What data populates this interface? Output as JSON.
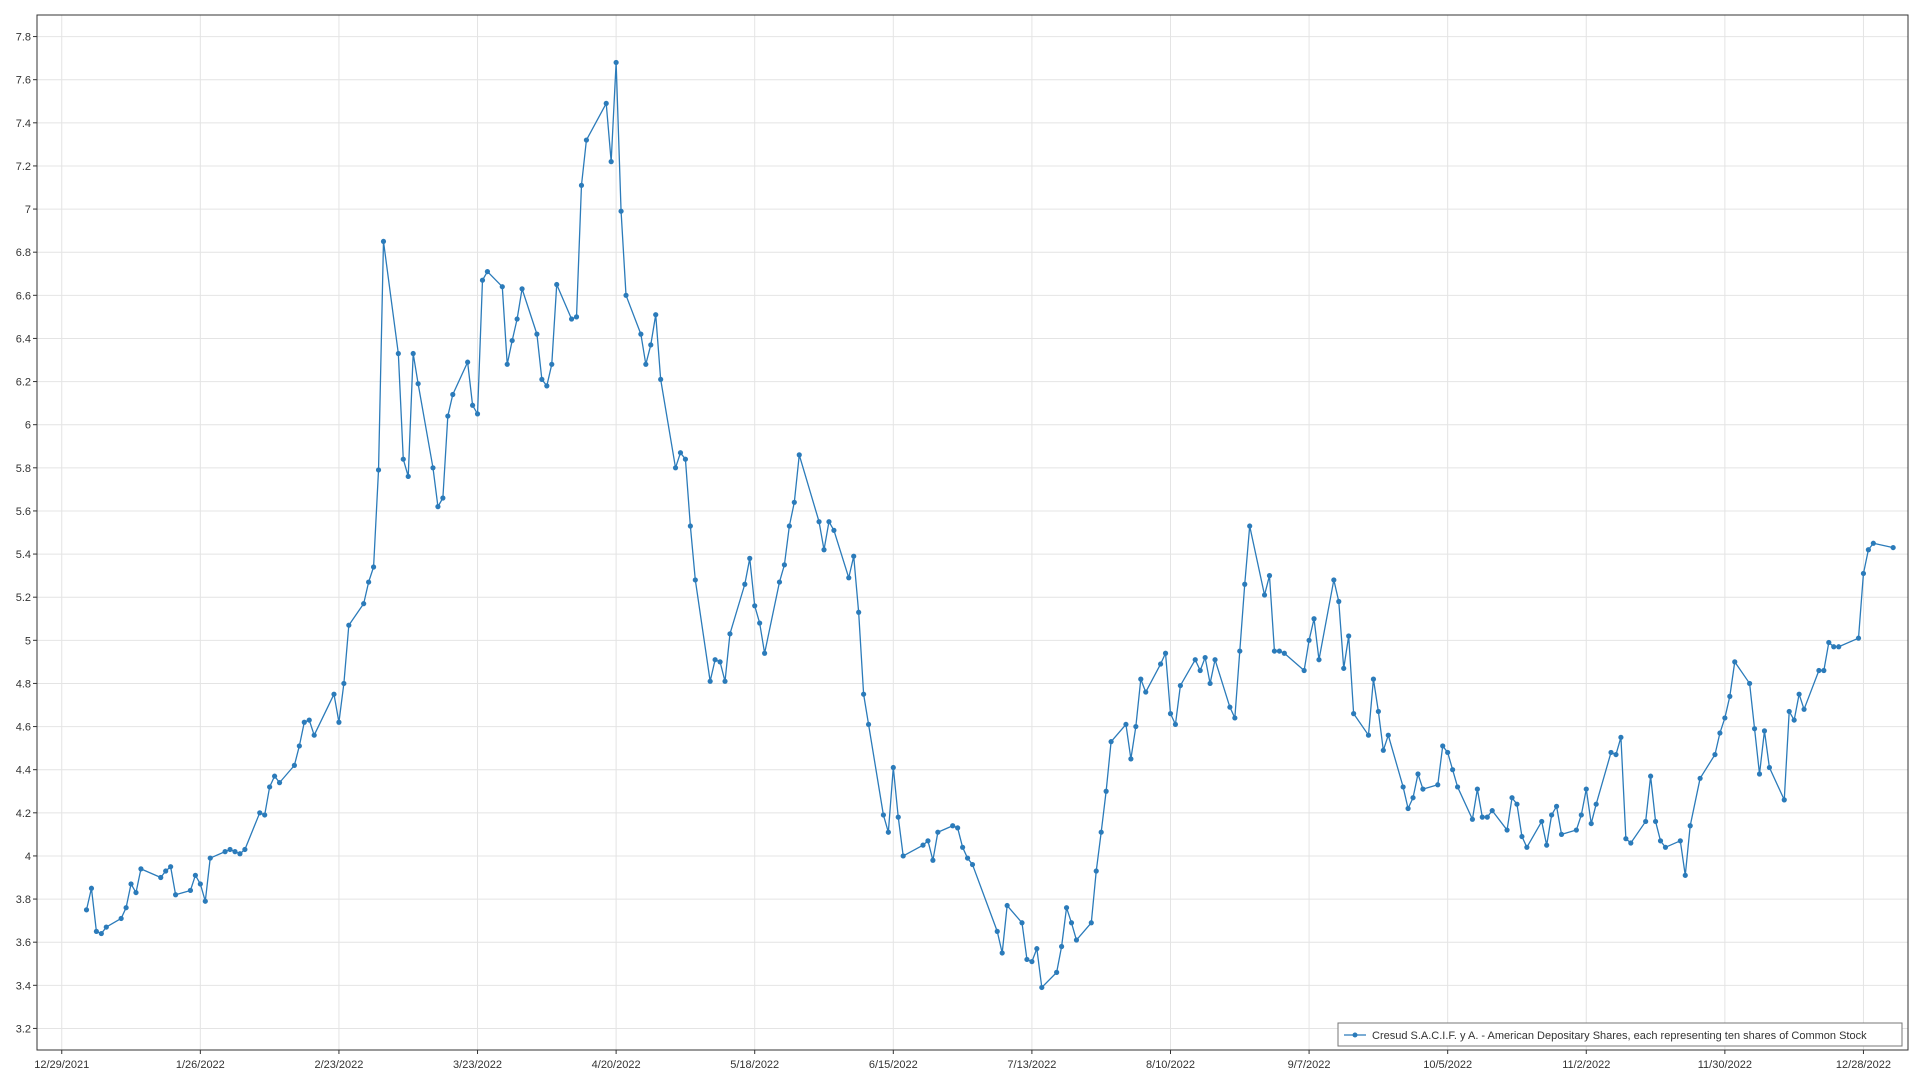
{
  "chart_data": {
    "type": "line",
    "title": "",
    "xlabel": "",
    "ylabel": "",
    "colors": {
      "series": "#2b7bba",
      "frame": "#333333",
      "grid": "#e4e4e4"
    },
    "grid": true,
    "legend_position": "bottom-right",
    "x_type": "date",
    "xlim": [
      "2021-12-24",
      "2023-01-06"
    ],
    "ylim": [
      3.1,
      7.9
    ],
    "y_ticks": [
      "3.2",
      "3.4",
      "3.6",
      "3.8",
      "4",
      "4.2",
      "4.4",
      "4.6",
      "4.8",
      "5",
      "5.2",
      "5.4",
      "5.6",
      "5.8",
      "6",
      "6.2",
      "6.4",
      "6.6",
      "6.8",
      "7",
      "7.2",
      "7.4",
      "7.6",
      "7.8"
    ],
    "x_ticks": [
      {
        "date": "2021-12-29",
        "label": "12/29/2021"
      },
      {
        "date": "2022-01-26",
        "label": "1/26/2022"
      },
      {
        "date": "2022-02-23",
        "label": "2/23/2022"
      },
      {
        "date": "2022-03-23",
        "label": "3/23/2022"
      },
      {
        "date": "2022-04-20",
        "label": "4/20/2022"
      },
      {
        "date": "2022-05-18",
        "label": "5/18/2022"
      },
      {
        "date": "2022-06-15",
        "label": "6/15/2022"
      },
      {
        "date": "2022-07-13",
        "label": "7/13/2022"
      },
      {
        "date": "2022-08-10",
        "label": "8/10/2022"
      },
      {
        "date": "2022-09-07",
        "label": "9/7/2022"
      },
      {
        "date": "2022-10-05",
        "label": "10/5/2022"
      },
      {
        "date": "2022-11-02",
        "label": "11/2/2022"
      },
      {
        "date": "2022-11-30",
        "label": "11/30/2022"
      },
      {
        "date": "2022-12-28",
        "label": "12/28/2022"
      }
    ],
    "series": [
      {
        "name": "Cresud S.A.C.I.F. y A. - American Depositary Shares, each representing ten shares of Common Stock",
        "points": [
          [
            "2022-01-03",
            3.75
          ],
          [
            "2022-01-04",
            3.85
          ],
          [
            "2022-01-05",
            3.65
          ],
          [
            "2022-01-06",
            3.64
          ],
          [
            "2022-01-07",
            3.67
          ],
          [
            "2022-01-10",
            3.71
          ],
          [
            "2022-01-11",
            3.76
          ],
          [
            "2022-01-12",
            3.87
          ],
          [
            "2022-01-13",
            3.83
          ],
          [
            "2022-01-14",
            3.94
          ],
          [
            "2022-01-18",
            3.9
          ],
          [
            "2022-01-19",
            3.93
          ],
          [
            "2022-01-20",
            3.95
          ],
          [
            "2022-01-21",
            3.82
          ],
          [
            "2022-01-24",
            3.84
          ],
          [
            "2022-01-25",
            3.91
          ],
          [
            "2022-01-26",
            3.87
          ],
          [
            "2022-01-27",
            3.79
          ],
          [
            "2022-01-28",
            3.99
          ],
          [
            "2022-01-31",
            4.02
          ],
          [
            "2022-02-01",
            4.03
          ],
          [
            "2022-02-02",
            4.02
          ],
          [
            "2022-02-03",
            4.01
          ],
          [
            "2022-02-04",
            4.03
          ],
          [
            "2022-02-07",
            4.2
          ],
          [
            "2022-02-08",
            4.19
          ],
          [
            "2022-02-09",
            4.32
          ],
          [
            "2022-02-10",
            4.37
          ],
          [
            "2022-02-11",
            4.34
          ],
          [
            "2022-02-14",
            4.42
          ],
          [
            "2022-02-15",
            4.51
          ],
          [
            "2022-02-16",
            4.62
          ],
          [
            "2022-02-17",
            4.63
          ],
          [
            "2022-02-18",
            4.56
          ],
          [
            "2022-02-22",
            4.75
          ],
          [
            "2022-02-23",
            4.62
          ],
          [
            "2022-02-24",
            4.8
          ],
          [
            "2022-02-25",
            5.07
          ],
          [
            "2022-02-28",
            5.17
          ],
          [
            "2022-03-01",
            5.27
          ],
          [
            "2022-03-02",
            5.34
          ],
          [
            "2022-03-03",
            5.79
          ],
          [
            "2022-03-04",
            6.85
          ],
          [
            "2022-03-07",
            6.33
          ],
          [
            "2022-03-08",
            5.84
          ],
          [
            "2022-03-09",
            5.76
          ],
          [
            "2022-03-10",
            6.33
          ],
          [
            "2022-03-11",
            6.19
          ],
          [
            "2022-03-14",
            5.8
          ],
          [
            "2022-03-15",
            5.62
          ],
          [
            "2022-03-16",
            5.66
          ],
          [
            "2022-03-17",
            6.04
          ],
          [
            "2022-03-18",
            6.14
          ],
          [
            "2022-03-21",
            6.29
          ],
          [
            "2022-03-22",
            6.09
          ],
          [
            "2022-03-23",
            6.05
          ],
          [
            "2022-03-24",
            6.67
          ],
          [
            "2022-03-25",
            6.71
          ],
          [
            "2022-03-28",
            6.64
          ],
          [
            "2022-03-29",
            6.28
          ],
          [
            "2022-03-30",
            6.39
          ],
          [
            "2022-03-31",
            6.49
          ],
          [
            "2022-04-01",
            6.63
          ],
          [
            "2022-04-04",
            6.42
          ],
          [
            "2022-04-05",
            6.21
          ],
          [
            "2022-04-06",
            6.18
          ],
          [
            "2022-04-07",
            6.28
          ],
          [
            "2022-04-08",
            6.65
          ],
          [
            "2022-04-11",
            6.49
          ],
          [
            "2022-04-12",
            6.5
          ],
          [
            "2022-04-13",
            7.11
          ],
          [
            "2022-04-14",
            7.32
          ],
          [
            "2022-04-18",
            7.49
          ],
          [
            "2022-04-19",
            7.22
          ],
          [
            "2022-04-20",
            7.68
          ],
          [
            "2022-04-21",
            6.99
          ],
          [
            "2022-04-22",
            6.6
          ],
          [
            "2022-04-25",
            6.42
          ],
          [
            "2022-04-26",
            6.28
          ],
          [
            "2022-04-27",
            6.37
          ],
          [
            "2022-04-28",
            6.51
          ],
          [
            "2022-04-29",
            6.21
          ],
          [
            "2022-05-02",
            5.8
          ],
          [
            "2022-05-03",
            5.87
          ],
          [
            "2022-05-04",
            5.84
          ],
          [
            "2022-05-05",
            5.53
          ],
          [
            "2022-05-06",
            5.28
          ],
          [
            "2022-05-09",
            4.81
          ],
          [
            "2022-05-10",
            4.91
          ],
          [
            "2022-05-11",
            4.9
          ],
          [
            "2022-05-12",
            4.81
          ],
          [
            "2022-05-13",
            5.03
          ],
          [
            "2022-05-16",
            5.26
          ],
          [
            "2022-05-17",
            5.38
          ],
          [
            "2022-05-18",
            5.16
          ],
          [
            "2022-05-19",
            5.08
          ],
          [
            "2022-05-20",
            4.94
          ],
          [
            "2022-05-23",
            5.27
          ],
          [
            "2022-05-24",
            5.35
          ],
          [
            "2022-05-25",
            5.53
          ],
          [
            "2022-05-26",
            5.64
          ],
          [
            "2022-05-27",
            5.86
          ],
          [
            "2022-05-31",
            5.55
          ],
          [
            "2022-06-01",
            5.42
          ],
          [
            "2022-06-02",
            5.55
          ],
          [
            "2022-06-03",
            5.51
          ],
          [
            "2022-06-06",
            5.29
          ],
          [
            "2022-06-07",
            5.39
          ],
          [
            "2022-06-08",
            5.13
          ],
          [
            "2022-06-09",
            4.75
          ],
          [
            "2022-06-10",
            4.61
          ],
          [
            "2022-06-13",
            4.19
          ],
          [
            "2022-06-14",
            4.11
          ],
          [
            "2022-06-15",
            4.41
          ],
          [
            "2022-06-16",
            4.18
          ],
          [
            "2022-06-17",
            4.0
          ],
          [
            "2022-06-21",
            4.05
          ],
          [
            "2022-06-22",
            4.07
          ],
          [
            "2022-06-23",
            3.98
          ],
          [
            "2022-06-24",
            4.11
          ],
          [
            "2022-06-27",
            4.14
          ],
          [
            "2022-06-28",
            4.13
          ],
          [
            "2022-06-29",
            4.04
          ],
          [
            "2022-06-30",
            3.99
          ],
          [
            "2022-07-01",
            3.96
          ],
          [
            "2022-07-06",
            3.65
          ],
          [
            "2022-07-07",
            3.55
          ],
          [
            "2022-07-08",
            3.77
          ],
          [
            "2022-07-11",
            3.69
          ],
          [
            "2022-07-12",
            3.52
          ],
          [
            "2022-07-13",
            3.51
          ],
          [
            "2022-07-14",
            3.57
          ],
          [
            "2022-07-15",
            3.39
          ],
          [
            "2022-07-18",
            3.46
          ],
          [
            "2022-07-19",
            3.58
          ],
          [
            "2022-07-20",
            3.76
          ],
          [
            "2022-07-21",
            3.69
          ],
          [
            "2022-07-22",
            3.61
          ],
          [
            "2022-07-25",
            3.69
          ],
          [
            "2022-07-26",
            3.93
          ],
          [
            "2022-07-27",
            4.11
          ],
          [
            "2022-07-28",
            4.3
          ],
          [
            "2022-07-29",
            4.53
          ],
          [
            "2022-08-01",
            4.61
          ],
          [
            "2022-08-02",
            4.45
          ],
          [
            "2022-08-03",
            4.6
          ],
          [
            "2022-08-04",
            4.82
          ],
          [
            "2022-08-05",
            4.76
          ],
          [
            "2022-08-08",
            4.89
          ],
          [
            "2022-08-09",
            4.94
          ],
          [
            "2022-08-10",
            4.66
          ],
          [
            "2022-08-11",
            4.61
          ],
          [
            "2022-08-12",
            4.79
          ],
          [
            "2022-08-15",
            4.91
          ],
          [
            "2022-08-16",
            4.86
          ],
          [
            "2022-08-17",
            4.92
          ],
          [
            "2022-08-18",
            4.8
          ],
          [
            "2022-08-19",
            4.91
          ],
          [
            "2022-08-22",
            4.69
          ],
          [
            "2022-08-23",
            4.64
          ],
          [
            "2022-08-24",
            4.95
          ],
          [
            "2022-08-25",
            5.26
          ],
          [
            "2022-08-26",
            5.53
          ],
          [
            "2022-08-29",
            5.21
          ],
          [
            "2022-08-30",
            5.3
          ],
          [
            "2022-08-31",
            4.95
          ],
          [
            "2022-09-01",
            4.95
          ],
          [
            "2022-09-02",
            4.94
          ],
          [
            "2022-09-06",
            4.86
          ],
          [
            "2022-09-07",
            5.0
          ],
          [
            "2022-09-08",
            5.1
          ],
          [
            "2022-09-09",
            4.91
          ],
          [
            "2022-09-12",
            5.28
          ],
          [
            "2022-09-13",
            5.18
          ],
          [
            "2022-09-14",
            4.87
          ],
          [
            "2022-09-15",
            5.02
          ],
          [
            "2022-09-16",
            4.66
          ],
          [
            "2022-09-19",
            4.56
          ],
          [
            "2022-09-20",
            4.82
          ],
          [
            "2022-09-21",
            4.67
          ],
          [
            "2022-09-22",
            4.49
          ],
          [
            "2022-09-23",
            4.56
          ],
          [
            "2022-09-26",
            4.32
          ],
          [
            "2022-09-27",
            4.22
          ],
          [
            "2022-09-28",
            4.27
          ],
          [
            "2022-09-29",
            4.38
          ],
          [
            "2022-09-30",
            4.31
          ],
          [
            "2022-10-03",
            4.33
          ],
          [
            "2022-10-04",
            4.51
          ],
          [
            "2022-10-05",
            4.48
          ],
          [
            "2022-10-06",
            4.4
          ],
          [
            "2022-10-07",
            4.32
          ],
          [
            "2022-10-10",
            4.17
          ],
          [
            "2022-10-11",
            4.31
          ],
          [
            "2022-10-12",
            4.18
          ],
          [
            "2022-10-13",
            4.18
          ],
          [
            "2022-10-14",
            4.21
          ],
          [
            "2022-10-17",
            4.12
          ],
          [
            "2022-10-18",
            4.27
          ],
          [
            "2022-10-19",
            4.24
          ],
          [
            "2022-10-20",
            4.09
          ],
          [
            "2022-10-21",
            4.04
          ],
          [
            "2022-10-24",
            4.16
          ],
          [
            "2022-10-25",
            4.05
          ],
          [
            "2022-10-26",
            4.19
          ],
          [
            "2022-10-27",
            4.23
          ],
          [
            "2022-10-28",
            4.1
          ],
          [
            "2022-10-31",
            4.12
          ],
          [
            "2022-11-01",
            4.19
          ],
          [
            "2022-11-02",
            4.31
          ],
          [
            "2022-11-03",
            4.15
          ],
          [
            "2022-11-04",
            4.24
          ],
          [
            "2022-11-07",
            4.48
          ],
          [
            "2022-11-08",
            4.47
          ],
          [
            "2022-11-09",
            4.55
          ],
          [
            "2022-11-10",
            4.08
          ],
          [
            "2022-11-11",
            4.06
          ],
          [
            "2022-11-14",
            4.16
          ],
          [
            "2022-11-15",
            4.37
          ],
          [
            "2022-11-16",
            4.16
          ],
          [
            "2022-11-17",
            4.07
          ],
          [
            "2022-11-18",
            4.04
          ],
          [
            "2022-11-21",
            4.07
          ],
          [
            "2022-11-22",
            3.91
          ],
          [
            "2022-11-23",
            4.14
          ],
          [
            "2022-11-25",
            4.36
          ],
          [
            "2022-11-28",
            4.47
          ],
          [
            "2022-11-29",
            4.57
          ],
          [
            "2022-11-30",
            4.64
          ],
          [
            "2022-12-01",
            4.74
          ],
          [
            "2022-12-02",
            4.9
          ],
          [
            "2022-12-05",
            4.8
          ],
          [
            "2022-12-06",
            4.59
          ],
          [
            "2022-12-07",
            4.38
          ],
          [
            "2022-12-08",
            4.58
          ],
          [
            "2022-12-09",
            4.41
          ],
          [
            "2022-12-12",
            4.26
          ],
          [
            "2022-12-13",
            4.67
          ],
          [
            "2022-12-14",
            4.63
          ],
          [
            "2022-12-15",
            4.75
          ],
          [
            "2022-12-16",
            4.68
          ],
          [
            "2022-12-19",
            4.86
          ],
          [
            "2022-12-20",
            4.86
          ],
          [
            "2022-12-21",
            4.99
          ],
          [
            "2022-12-22",
            4.97
          ],
          [
            "2022-12-23",
            4.97
          ],
          [
            "2022-12-27",
            5.01
          ],
          [
            "2022-12-28",
            5.31
          ],
          [
            "2022-12-29",
            5.42
          ],
          [
            "2022-12-30",
            5.45
          ],
          [
            "2023-01-03",
            5.43
          ]
        ]
      }
    ]
  }
}
